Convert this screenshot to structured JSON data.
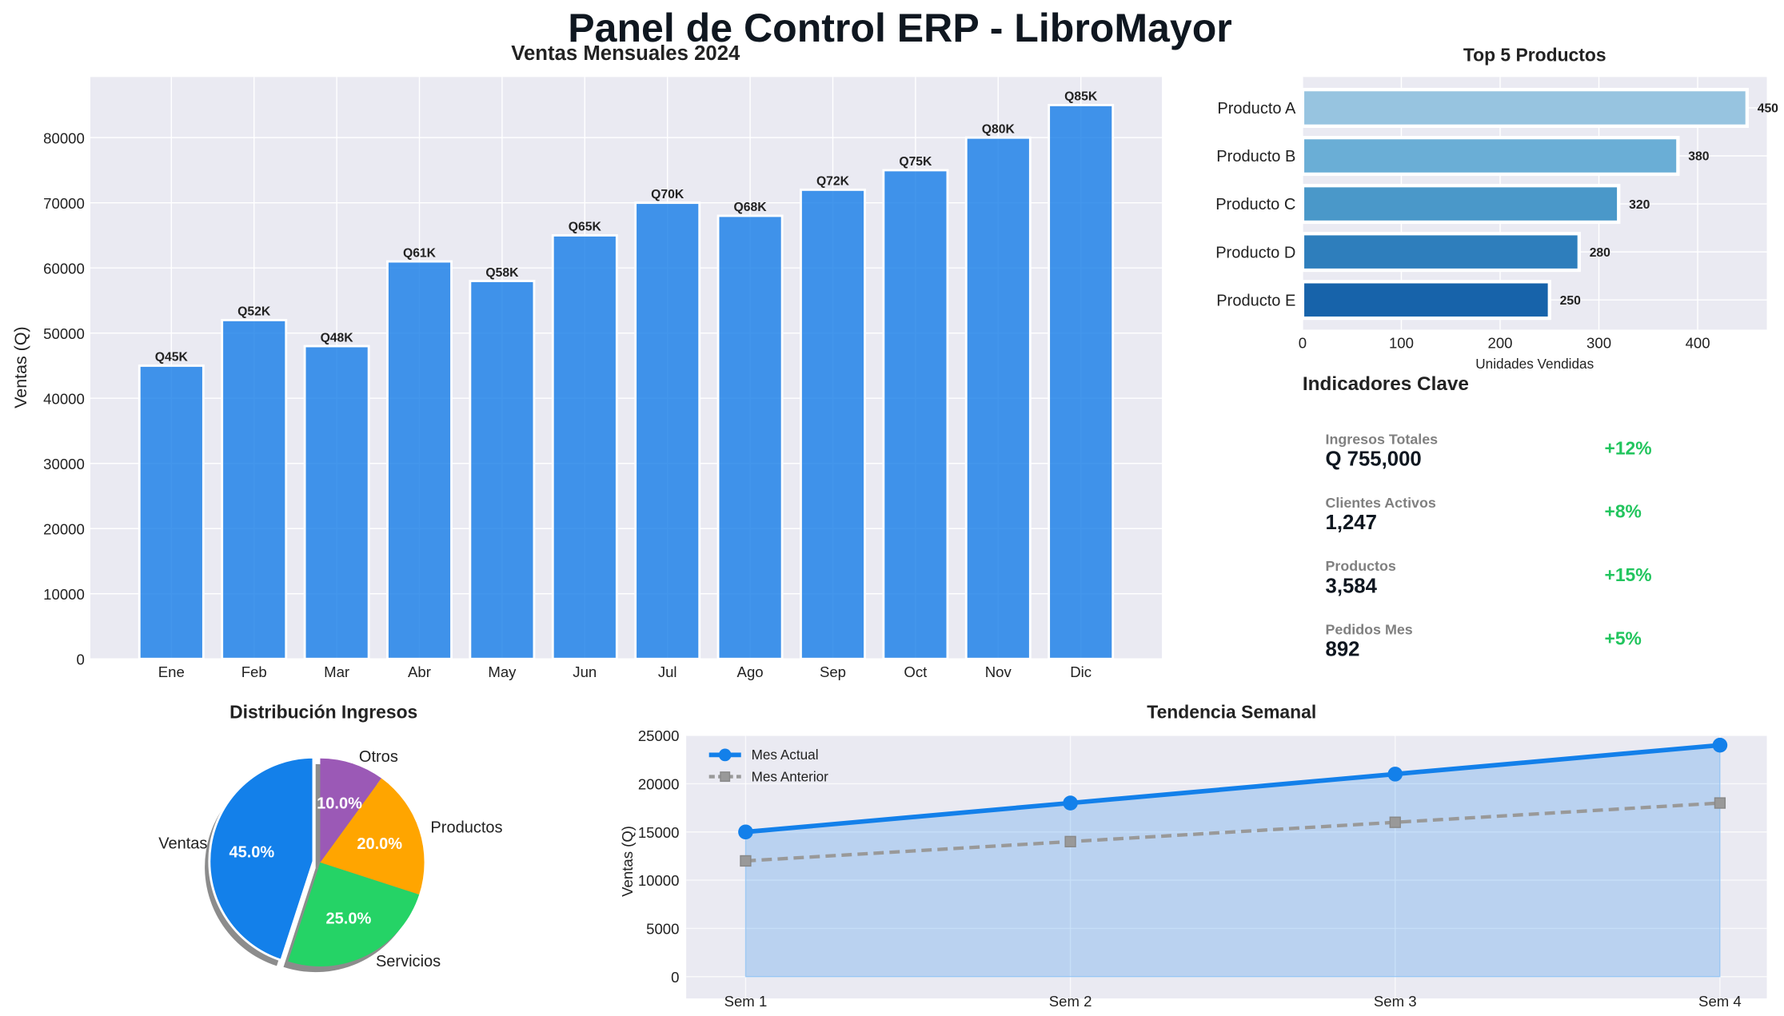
{
  "title": "Panel de Control ERP - LibroMayor",
  "colors": {
    "bg_axes": "#eaeaf2",
    "grid": "#ffffff",
    "bar": "#1a7fe8",
    "green": "#22c55e",
    "label_gray": "#808080",
    "dark": "#0f1720"
  },
  "chart_data": [
    {
      "type": "bar",
      "title": "Ventas Mensuales 2024",
      "xlabel": "",
      "ylabel": "Ventas (Q)",
      "categories": [
        "Ene",
        "Feb",
        "Mar",
        "Abr",
        "May",
        "Jun",
        "Jul",
        "Ago",
        "Sep",
        "Oct",
        "Nov",
        "Dic"
      ],
      "values": [
        45000,
        52000,
        48000,
        61000,
        58000,
        65000,
        70000,
        68000,
        72000,
        75000,
        80000,
        85000
      ],
      "data_labels": [
        "Q45K",
        "Q52K",
        "Q48K",
        "Q61K",
        "Q58K",
        "Q65K",
        "Q70K",
        "Q68K",
        "Q72K",
        "Q75K",
        "Q80K",
        "Q85K"
      ],
      "yticks": [
        0,
        10000,
        20000,
        30000,
        40000,
        50000,
        60000,
        70000,
        80000
      ],
      "ylim": [
        0,
        89300
      ],
      "grid": true
    },
    {
      "type": "bar",
      "orientation": "horizontal",
      "title": "Top 5 Productos",
      "xlabel": "Unidades Vendidas",
      "ylabel": "",
      "categories": [
        "Producto A",
        "Producto B",
        "Producto C",
        "Producto D",
        "Producto E"
      ],
      "values": [
        450,
        380,
        320,
        280,
        250
      ],
      "colors": [
        "#97c4e0",
        "#6aaed6",
        "#4a98c9",
        "#2e7ebc",
        "#1763aa"
      ],
      "xticks": [
        0,
        100,
        200,
        300,
        400
      ],
      "xlim": [
        0,
        470
      ],
      "grid": true
    },
    {
      "type": "pie",
      "title": "Distribución Ingresos",
      "categories": [
        "Ventas",
        "Servicios",
        "Productos",
        "Otros"
      ],
      "values": [
        45,
        25,
        20,
        10
      ],
      "data_labels": [
        "45.0%",
        "25.0%",
        "20.0%",
        "10.0%"
      ],
      "colors": [
        "#1380ea",
        "#25d366",
        "#ffa500",
        "#9b59b6"
      ],
      "exploded": "Ventas",
      "shadow": true
    },
    {
      "type": "line",
      "title": "Tendencia Semanal",
      "xlabel": "",
      "ylabel": "Ventas (Q)",
      "categories": [
        "Sem 1",
        "Sem 2",
        "Sem 3",
        "Sem 4"
      ],
      "series": [
        {
          "name": "Mes Actual",
          "values": [
            15000,
            18000,
            21000,
            24000
          ],
          "color": "#1380ea",
          "style": "solid",
          "marker": "circle",
          "fill": true
        },
        {
          "name": "Mes Anterior",
          "values": [
            12000,
            14000,
            16000,
            18000
          ],
          "color": "#999999",
          "style": "dashed",
          "marker": "square"
        }
      ],
      "yticks": [
        0,
        5000,
        10000,
        15000,
        20000,
        25000
      ],
      "ylim": [
        -2260,
        25000
      ],
      "legend": "top-left",
      "grid": true
    }
  ],
  "kpis": {
    "title": "Indicadores Clave",
    "items": [
      {
        "label": "Ingresos Totales",
        "value": "Q 755,000",
        "change": "+12%"
      },
      {
        "label": "Clientes Activos",
        "value": "1,247",
        "change": "+8%"
      },
      {
        "label": "Productos",
        "value": "3,584",
        "change": "+15%"
      },
      {
        "label": "Pedidos Mes",
        "value": "892",
        "change": "+5%"
      }
    ]
  }
}
